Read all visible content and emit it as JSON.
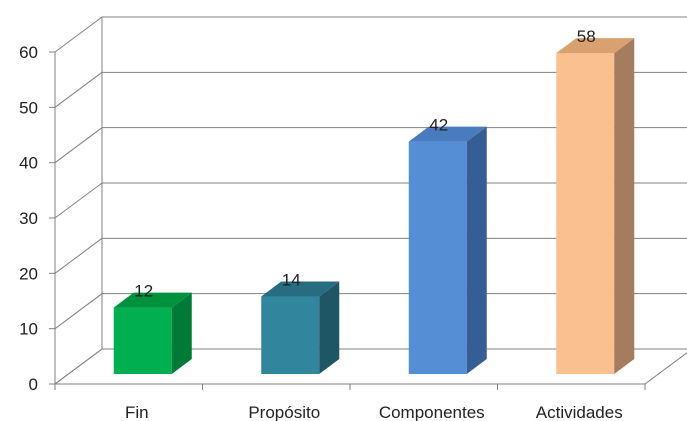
{
  "chart_data": {
    "type": "bar",
    "categories": [
      "Fin",
      "Propósito",
      "Componentes",
      "Actividades"
    ],
    "values": [
      12,
      14,
      42,
      58
    ],
    "data_labels": [
      "12",
      "14",
      "42",
      "58"
    ],
    "ylim": [
      0,
      60
    ],
    "y_ticks": [
      "0",
      "10",
      "20",
      "30",
      "40",
      "50",
      "60"
    ],
    "grid": true,
    "three_d": true,
    "legend": "none",
    "bar_colors": [
      {
        "front": "#00B050",
        "side": "#007A37",
        "top": "#00913F"
      },
      {
        "front": "#31859C",
        "side": "#1F5666",
        "top": "#276C80"
      },
      {
        "front": "#558ED5",
        "side": "#365E94",
        "top": "#4A7BBE"
      },
      {
        "front": "#FAC090",
        "side": "#A57C5E",
        "top": "#D9A070"
      }
    ],
    "gridline_color": "#808080"
  }
}
